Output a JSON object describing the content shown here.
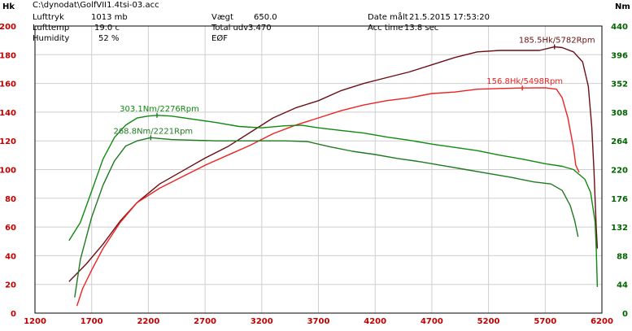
{
  "header": {
    "file": "C:\\dynodat\\GolfVII1.4tsi-03.acc",
    "lufttryk_label": "Lufttryk",
    "lufttryk_value": "1013 mb",
    "lufttemp_label": "Lufttemp",
    "lufttemp_value": "19.0 c",
    "humidity_label": "Humidity",
    "humidity_value": "52 %",
    "vaegt_label": "Vægt",
    "vaegt_value": "650.0",
    "total_udv_label": "Total udv",
    "total_udv_value": "3.470",
    "eof_label": "EØF",
    "date_label": "Date målt",
    "date_value": "21.5.2015 17:53:20",
    "acc_label": "Acc time",
    "acc_value": "13.8 sec"
  },
  "colors": {
    "grid": "#cfcfcf",
    "left_axis": "#c00000",
    "right_axis": "#006400",
    "bottom_axis": "#c00000",
    "hp_run1": "#6b0f14",
    "hp_run2": "#ee2222",
    "nm_run1": "#0e8a0e",
    "nm_run2": "#1f7a1f"
  },
  "chart_data": {
    "type": "line",
    "xlabel": "",
    "ylabel_left": "Hk",
    "ylabel_right": "Nm",
    "xlim": [
      1200,
      6200
    ],
    "ylim_left": [
      0,
      200
    ],
    "ylim_right": [
      0,
      440
    ],
    "x_ticks": [
      "1200",
      "1700",
      "2200",
      "2700",
      "3200",
      "3700",
      "4200",
      "4700",
      "5200",
      "5700",
      "6200"
    ],
    "y_left_ticks": [
      "0",
      "20",
      "40",
      "60",
      "80",
      "100",
      "120",
      "140",
      "160",
      "180",
      "200"
    ],
    "y_right_ticks": [
      "0",
      "44",
      "88",
      "132",
      "176",
      "220",
      "264",
      "308",
      "352",
      "396",
      "440"
    ],
    "grid": true,
    "series": [
      {
        "axis": "left",
        "color_key": "hp_run1",
        "points": [
          [
            1500,
            22
          ],
          [
            1650,
            34
          ],
          [
            1800,
            48
          ],
          [
            1950,
            64
          ],
          [
            2100,
            77
          ],
          [
            2300,
            90
          ],
          [
            2500,
            99
          ],
          [
            2700,
            108
          ],
          [
            2900,
            116
          ],
          [
            3100,
            126
          ],
          [
            3300,
            136
          ],
          [
            3500,
            143
          ],
          [
            3700,
            148
          ],
          [
            3900,
            155
          ],
          [
            4100,
            160
          ],
          [
            4300,
            164
          ],
          [
            4500,
            168
          ],
          [
            4700,
            173
          ],
          [
            4900,
            178
          ],
          [
            5100,
            182
          ],
          [
            5300,
            183
          ],
          [
            5500,
            183
          ],
          [
            5650,
            183
          ],
          [
            5782,
            185.5
          ],
          [
            5850,
            185
          ],
          [
            5950,
            182
          ],
          [
            6030,
            175
          ],
          [
            6080,
            158
          ],
          [
            6110,
            130
          ],
          [
            6130,
            100
          ],
          [
            6150,
            60
          ],
          [
            6160,
            45
          ]
        ]
      },
      {
        "axis": "left",
        "color_key": "hp_run2",
        "points": [
          [
            1570,
            5
          ],
          [
            1620,
            17
          ],
          [
            1700,
            30
          ],
          [
            1800,
            45
          ],
          [
            1950,
            63
          ],
          [
            2100,
            77
          ],
          [
            2300,
            87
          ],
          [
            2500,
            95
          ],
          [
            2700,
            103
          ],
          [
            2900,
            110
          ],
          [
            3100,
            117
          ],
          [
            3300,
            125
          ],
          [
            3500,
            131
          ],
          [
            3700,
            136
          ],
          [
            3900,
            141
          ],
          [
            4100,
            145
          ],
          [
            4300,
            148
          ],
          [
            4500,
            150
          ],
          [
            4700,
            153
          ],
          [
            4900,
            154
          ],
          [
            5100,
            156
          ],
          [
            5300,
            156.5
          ],
          [
            5498,
            156.8
          ],
          [
            5700,
            157
          ],
          [
            5800,
            156
          ],
          [
            5850,
            150
          ],
          [
            5900,
            136
          ],
          [
            5950,
            115
          ],
          [
            5970,
            103
          ],
          [
            6000,
            98
          ]
        ]
      },
      {
        "axis": "right",
        "color_key": "nm_run1",
        "points": [
          [
            1500,
            111
          ],
          [
            1600,
            139
          ],
          [
            1700,
            187
          ],
          [
            1800,
            236
          ],
          [
            1900,
            269
          ],
          [
            2000,
            288
          ],
          [
            2100,
            299
          ],
          [
            2200,
            302
          ],
          [
            2276,
            303.1
          ],
          [
            2400,
            302
          ],
          [
            2600,
            297
          ],
          [
            2800,
            292
          ],
          [
            3000,
            286
          ],
          [
            3200,
            284
          ],
          [
            3400,
            287
          ],
          [
            3550,
            288
          ],
          [
            3700,
            284
          ],
          [
            3900,
            280
          ],
          [
            4100,
            276
          ],
          [
            4300,
            270
          ],
          [
            4500,
            265
          ],
          [
            4700,
            259
          ],
          [
            4900,
            254
          ],
          [
            5100,
            249
          ],
          [
            5300,
            242
          ],
          [
            5500,
            236
          ],
          [
            5700,
            229
          ],
          [
            5850,
            225
          ],
          [
            5950,
            220
          ],
          [
            6050,
            205
          ],
          [
            6100,
            185
          ],
          [
            6140,
            140
          ],
          [
            6150,
            100
          ],
          [
            6160,
            40
          ]
        ]
      },
      {
        "axis": "right",
        "color_key": "nm_run2",
        "points": [
          [
            1550,
            24
          ],
          [
            1600,
            82
          ],
          [
            1700,
            147
          ],
          [
            1800,
            196
          ],
          [
            1900,
            233
          ],
          [
            2000,
            256
          ],
          [
            2100,
            264
          ],
          [
            2221,
            268.8
          ],
          [
            2400,
            266
          ],
          [
            2600,
            265
          ],
          [
            2800,
            264
          ],
          [
            3000,
            264
          ],
          [
            3200,
            264
          ],
          [
            3400,
            264
          ],
          [
            3600,
            263
          ],
          [
            3800,
            255
          ],
          [
            4000,
            248
          ],
          [
            4200,
            243
          ],
          [
            4400,
            237
          ],
          [
            4600,
            232
          ],
          [
            4800,
            226
          ],
          [
            5000,
            220
          ],
          [
            5200,
            214
          ],
          [
            5400,
            208
          ],
          [
            5600,
            201
          ],
          [
            5750,
            198
          ],
          [
            5850,
            188
          ],
          [
            5920,
            165
          ],
          [
            5960,
            142
          ],
          [
            5990,
            117
          ]
        ]
      }
    ],
    "annotations": [
      {
        "text": "185.5Hk/5782Rpm",
        "x": 5782,
        "y": 185.5,
        "axis": "left",
        "color_key": "hp_run1"
      },
      {
        "text": "156.8Hk/5498Rpm",
        "x": 5498,
        "y": 156.8,
        "axis": "left",
        "color_key": "hp_run2"
      },
      {
        "text": "303.1Nm/2276Rpm",
        "x": 2276,
        "y": 303.1,
        "axis": "right",
        "color_key": "nm_run1"
      },
      {
        "text": "268.8Nm/2221Rpm",
        "x": 2221,
        "y": 268.8,
        "axis": "right",
        "color_key": "nm_run2"
      }
    ]
  }
}
